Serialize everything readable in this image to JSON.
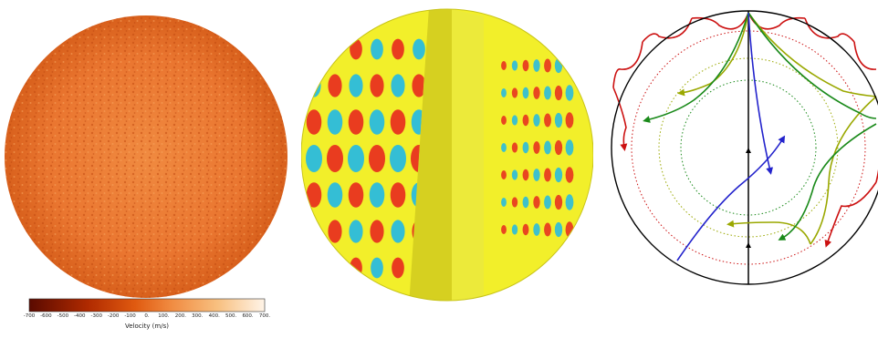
{
  "colorbar": {
    "label": "Velocity (m/s)",
    "range": [
      -700,
      700
    ],
    "ticks": [
      "-700",
      "-600",
      "-500",
      "-400",
      "-300",
      "-200",
      "-100",
      "0.",
      "100.",
      "200.",
      "300.",
      "400.",
      "500.",
      "600.",
      "700."
    ],
    "colors": [
      "#5a0a00",
      "#b02a00",
      "#e05a10",
      "#f08a40",
      "#f8c080",
      "#fff4e8"
    ]
  },
  "panels": [
    {
      "name": "surface-velocity-sphere"
    },
    {
      "name": "oscillation-mode-sphere",
      "palette": {
        "positive": "#e8281e",
        "negative": "#1fb8e8",
        "background": "#f2ef2a"
      }
    },
    {
      "name": "acoustic-ray-diagram",
      "ray_colors": [
        "#cc1111",
        "#9aa800",
        "#1a8a1a",
        "#2222cc"
      ]
    }
  ]
}
